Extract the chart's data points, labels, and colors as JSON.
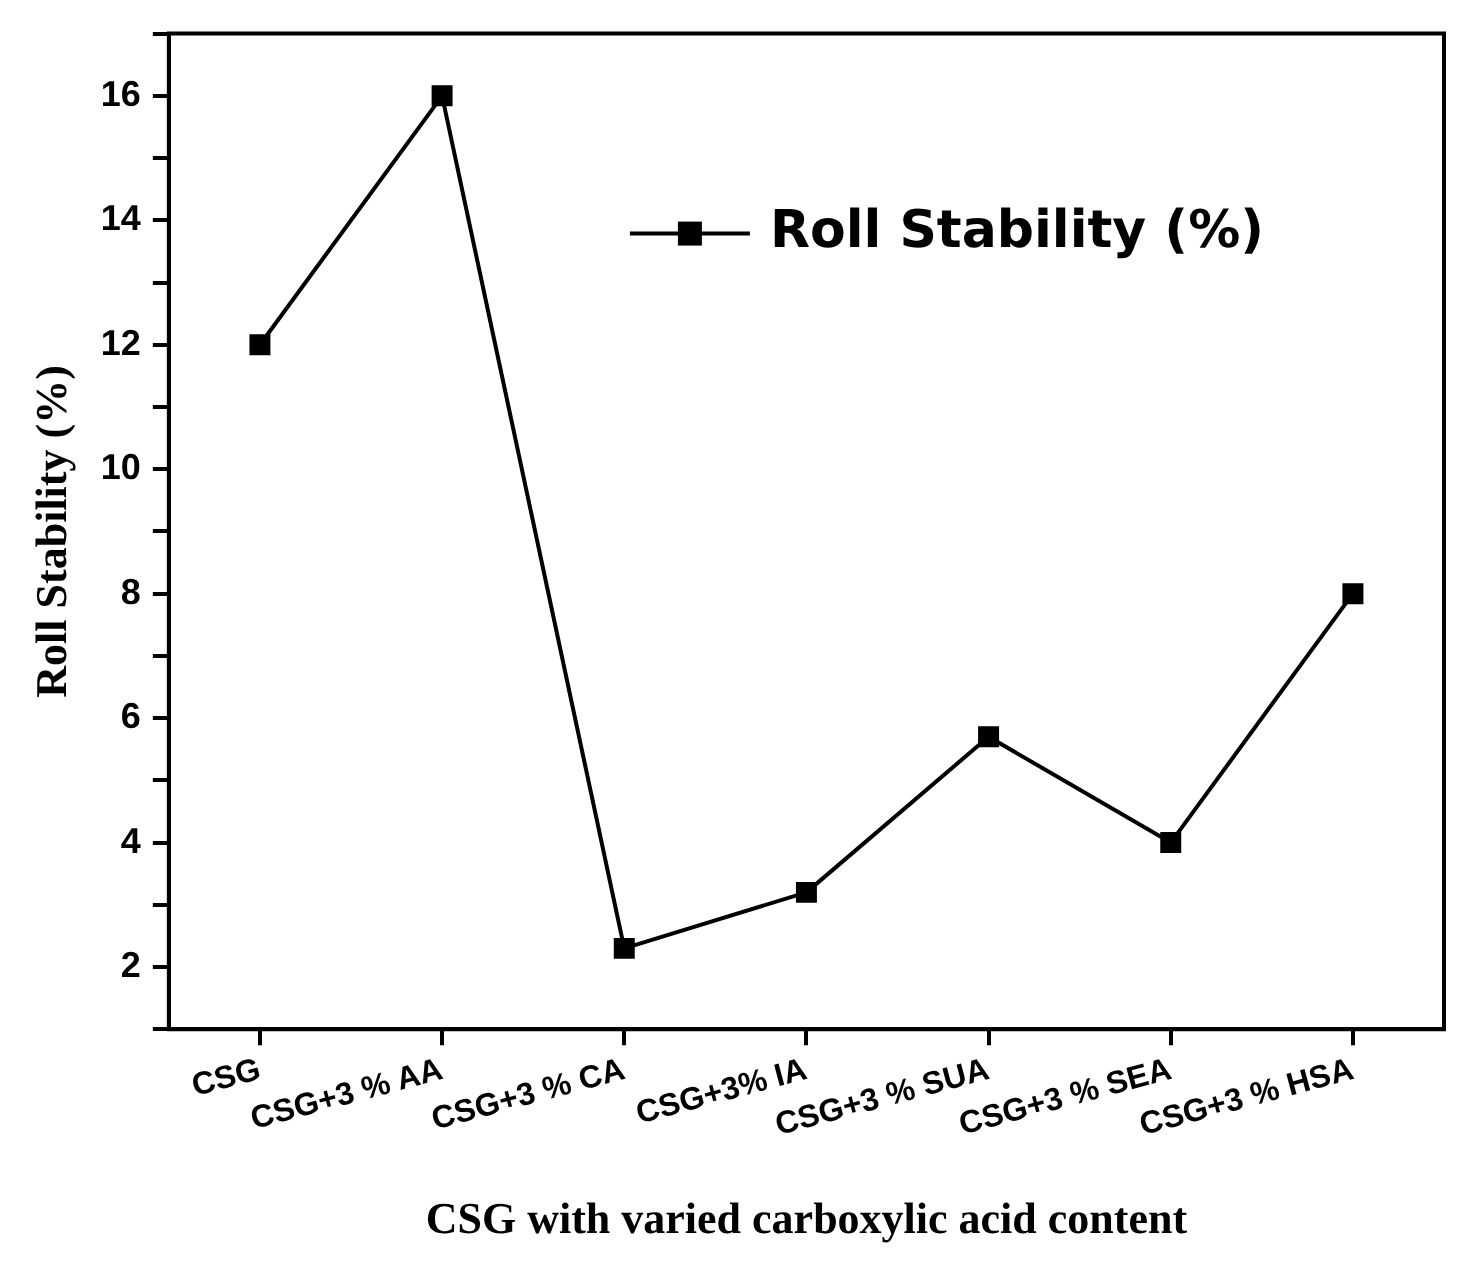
{
  "chart_data": {
    "type": "line",
    "xlabel": "CSG with varied carboxylic acid content",
    "ylabel": "Roll Stability (%)",
    "categories": [
      "CSG",
      "CSG+3 % AA",
      "CSG+3 % CA",
      "CSG+3% IA",
      "CSG+3 % SUA",
      "CSG+3 % SEA",
      "CSG+3 % HSA"
    ],
    "series": [
      {
        "name": "Roll Stability (%)",
        "color": "#000000",
        "values": [
          12,
          16,
          2.3,
          3.2,
          5.7,
          4,
          8
        ]
      }
    ],
    "ylim": [
      1,
      17
    ],
    "yticks": [
      {
        "value": 1,
        "label": null
      },
      2,
      {
        "value": 3,
        "label": null
      },
      4,
      {
        "value": 5,
        "label": null
      },
      6,
      {
        "value": 7,
        "label": null
      },
      8,
      {
        "value": 9,
        "label": null
      },
      10,
      {
        "value": 11,
        "label": null
      },
      12,
      {
        "value": 13,
        "label": null
      },
      14,
      {
        "value": 15,
        "label": null
      },
      16,
      {
        "value": 17,
        "label": null
      }
    ],
    "grid": false,
    "legend": "top right",
    "marker": "square",
    "line_style": "solid"
  }
}
